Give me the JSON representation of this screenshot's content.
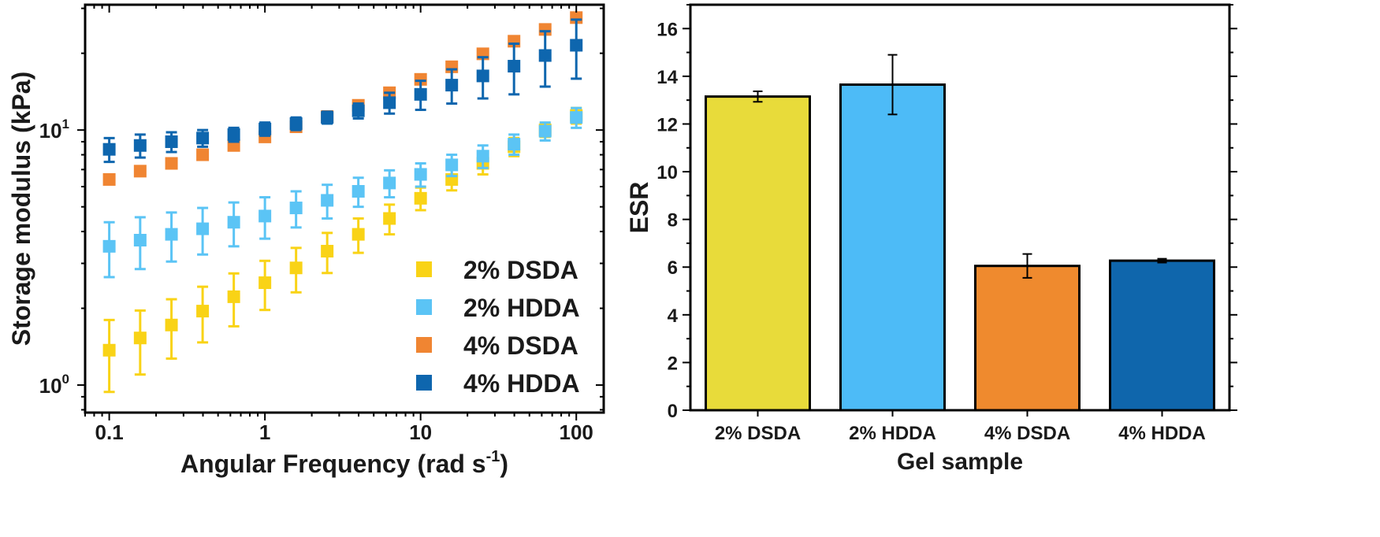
{
  "chart_data": [
    {
      "type": "scatter",
      "xscale": "log",
      "yscale": "log",
      "xlabel": "Angular Frequency (rad s",
      "xlabel_sup": "-1",
      "xlabel_end": ")",
      "ylabel": "Storage modulus (kPa)",
      "xlim": [
        0.07,
        150
      ],
      "ylim": [
        0.78,
        31
      ],
      "x_ticks": [
        0.1,
        1,
        10,
        100
      ],
      "x_tick_labels": [
        "0.1",
        "1",
        "10",
        "100"
      ],
      "y_ticks": [
        1,
        10
      ],
      "y_tick_labels": [
        {
          "base": "10",
          "exp": "0"
        },
        {
          "base": "10",
          "exp": "1"
        }
      ],
      "legend_position": "bottom-right",
      "x": [
        0.1,
        0.158,
        0.251,
        0.398,
        0.631,
        1.0,
        1.585,
        2.512,
        3.981,
        6.31,
        10.0,
        15.85,
        25.12,
        39.81,
        63.1,
        100.0
      ],
      "series": [
        {
          "name": "2% DSDA",
          "color": "#F9D316",
          "y": [
            1.37,
            1.53,
            1.72,
            1.95,
            2.22,
            2.52,
            2.88,
            3.35,
            3.9,
            4.5,
            5.4,
            6.4,
            7.4,
            8.6,
            10.0,
            11.4
          ],
          "err": [
            0.43,
            0.43,
            0.45,
            0.48,
            0.52,
            0.55,
            0.57,
            0.6,
            0.6,
            0.6,
            0.55,
            0.6,
            0.7,
            0.7,
            0.6,
            0.8
          ]
        },
        {
          "name": "2% HDDA",
          "color": "#5BC4F5",
          "y": [
            3.5,
            3.7,
            3.9,
            4.1,
            4.35,
            4.6,
            4.95,
            5.3,
            5.75,
            6.2,
            6.7,
            7.3,
            7.9,
            8.8,
            9.9,
            11.2
          ],
          "err": [
            0.85,
            0.85,
            0.85,
            0.85,
            0.85,
            0.85,
            0.8,
            0.8,
            0.75,
            0.75,
            0.7,
            0.7,
            0.8,
            0.8,
            0.8,
            1.0
          ]
        },
        {
          "name": "4% DSDA",
          "color": "#F08532",
          "y": [
            6.4,
            6.9,
            7.4,
            8.0,
            8.7,
            9.4,
            10.3,
            11.3,
            12.5,
            14.0,
            15.8,
            17.7,
            19.9,
            22.3,
            24.8,
            27.6
          ],
          "err": [
            0,
            0,
            0,
            0,
            0,
            0,
            0,
            0,
            0,
            0,
            0,
            0,
            0,
            0,
            0,
            0
          ]
        },
        {
          "name": "4% HDDA",
          "color": "#0E66AE",
          "y": [
            8.4,
            8.7,
            9.0,
            9.3,
            9.6,
            10.1,
            10.6,
            11.2,
            11.9,
            12.8,
            13.8,
            15.0,
            16.3,
            17.8,
            19.6,
            21.5
          ],
          "err": [
            0.9,
            0.9,
            0.8,
            0.7,
            0.6,
            0.6,
            0.6,
            0.6,
            0.8,
            1.2,
            1.8,
            2.3,
            3.0,
            4.0,
            4.8,
            5.6
          ]
        }
      ]
    },
    {
      "type": "bar",
      "xlabel": "Gel sample",
      "ylabel": "ESR",
      "ylim": [
        0,
        17
      ],
      "y_ticks": [
        0,
        2,
        4,
        6,
        8,
        10,
        12,
        14,
        16
      ],
      "y_tick_labels": [
        "0",
        "2",
        "4",
        "6",
        "8",
        "10",
        "12",
        "14",
        "16"
      ],
      "categories": [
        "2% DSDA",
        "2% HDDA",
        "4% DSDA",
        "4% HDDA"
      ],
      "values": [
        13.15,
        13.65,
        6.05,
        6.27
      ],
      "errors": [
        0.22,
        1.25,
        0.5,
        0.08
      ],
      "colors": [
        "#E8DB3A",
        "#4DBBF7",
        "#EF8A2E",
        "#0F66AC"
      ]
    }
  ]
}
